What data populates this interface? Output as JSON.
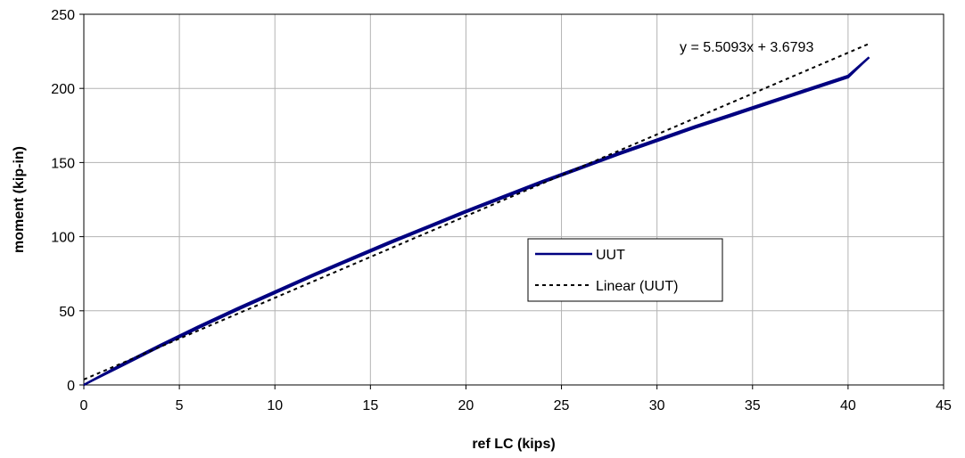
{
  "chart_data": {
    "type": "line",
    "xlabel": "ref LC (kips)",
    "ylabel": "moment (kip-in)",
    "xlim": [
      0,
      45
    ],
    "ylim": [
      0,
      250
    ],
    "xticks": [
      0,
      5,
      10,
      15,
      20,
      25,
      30,
      35,
      40,
      45
    ],
    "yticks": [
      0,
      50,
      100,
      150,
      200,
      250
    ],
    "grid": true,
    "legend_position": "center-right",
    "series": [
      {
        "name": "UUT",
        "style": "solid",
        "color": "#000080",
        "x": [
          0,
          2,
          4,
          6,
          8,
          10,
          12,
          14,
          16,
          18,
          20,
          22,
          24,
          26,
          28,
          30,
          32,
          34,
          36,
          38,
          40,
          41.1
        ],
        "y": [
          0,
          14,
          27,
          39.5,
          51.5,
          63,
          74.5,
          85.5,
          96.5,
          107,
          117.5,
          127.5,
          137.5,
          147,
          156.5,
          165.5,
          174.5,
          183,
          191.5,
          200,
          208.5,
          221
        ]
      },
      {
        "name": "Linear (UUT)",
        "style": "dashed",
        "color": "#000000",
        "trendline": {
          "slope": 5.5093,
          "intercept": 3.6793
        },
        "x": [
          0,
          41.1
        ],
        "y": [
          3.6793,
          230.11
        ]
      }
    ],
    "annotations": [
      {
        "text": "y = 5.5093x + 3.6793"
      }
    ]
  }
}
